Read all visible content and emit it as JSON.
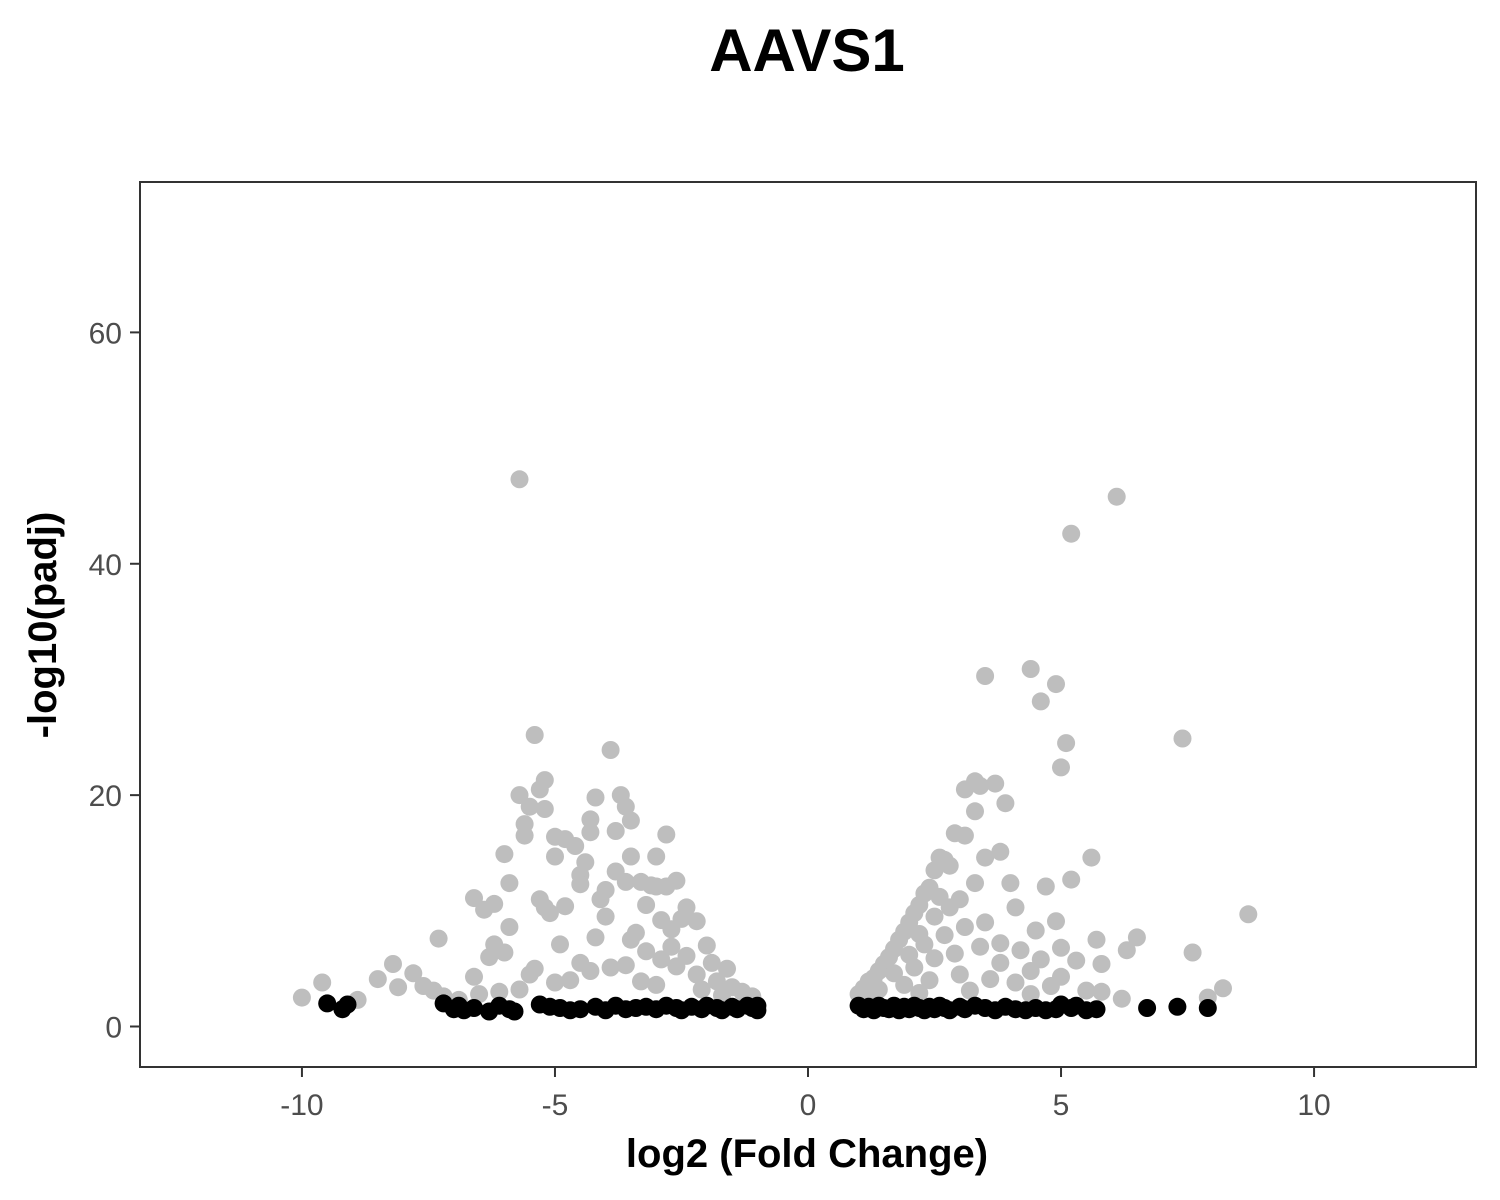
{
  "chart_data": {
    "type": "scatter",
    "title": "AAVS1",
    "xlabel": "log2 (Fold Change)",
    "ylabel": "-log10(padj)",
    "xlim": [
      -13.2,
      13.2
    ],
    "ylim": [
      -3.5,
      73
    ],
    "x_ticks": [
      {
        "value": -10,
        "label": "-10"
      },
      {
        "value": -5,
        "label": "-5"
      },
      {
        "value": 0,
        "label": "0"
      },
      {
        "value": 5,
        "label": "5"
      },
      {
        "value": 10,
        "label": "10"
      }
    ],
    "y_ticks": [
      {
        "value": 0,
        "label": "0"
      },
      {
        "value": 20,
        "label": "20"
      },
      {
        "value": 40,
        "label": "40"
      },
      {
        "value": 60,
        "label": "60"
      }
    ],
    "grid": false,
    "legend": "none",
    "colors": {
      "significant": "#bebebe",
      "not_significant": "#000000",
      "panel_border": "#333333",
      "tick_text": "#4d4d4d"
    },
    "series": [
      {
        "color": "#bebebe",
        "points": [
          [
            -10.0,
            2.5
          ],
          [
            -9.6,
            3.8
          ],
          [
            -8.9,
            2.3
          ],
          [
            -8.5,
            4.1
          ],
          [
            -8.2,
            5.4
          ],
          [
            -8.1,
            3.4
          ],
          [
            -7.8,
            4.6
          ],
          [
            -7.6,
            3.5
          ],
          [
            -7.3,
            7.6
          ],
          [
            -7.2,
            2.6
          ],
          [
            -6.9,
            2.3
          ],
          [
            -6.6,
            4.3
          ],
          [
            -6.6,
            11.1
          ],
          [
            -6.4,
            10.1
          ],
          [
            -6.3,
            6.0
          ],
          [
            -6.2,
            10.6
          ],
          [
            -6.0,
            14.9
          ],
          [
            -6.2,
            7.1
          ],
          [
            -6.0,
            6.4
          ],
          [
            -5.9,
            8.6
          ],
          [
            -5.9,
            12.4
          ],
          [
            -5.7,
            47.3
          ],
          [
            -5.7,
            20.0
          ],
          [
            -5.6,
            16.5
          ],
          [
            -5.6,
            17.5
          ],
          [
            -5.5,
            19.0
          ],
          [
            -5.4,
            25.2
          ],
          [
            -5.3,
            20.5
          ],
          [
            -5.2,
            21.3
          ],
          [
            -5.2,
            18.8
          ],
          [
            -5.3,
            11.0
          ],
          [
            -5.2,
            10.3
          ],
          [
            -5.5,
            4.5
          ],
          [
            -5.4,
            5.0
          ],
          [
            -5.1,
            9.8
          ],
          [
            -5.0,
            16.4
          ],
          [
            -5.0,
            14.7
          ],
          [
            -4.9,
            7.1
          ],
          [
            -4.8,
            10.4
          ],
          [
            -4.8,
            16.2
          ],
          [
            -4.6,
            15.6
          ],
          [
            -4.5,
            13.1
          ],
          [
            -4.5,
            12.3
          ],
          [
            -4.5,
            5.5
          ],
          [
            -4.4,
            14.2
          ],
          [
            -4.3,
            17.9
          ],
          [
            -4.3,
            16.8
          ],
          [
            -4.2,
            7.7
          ],
          [
            -4.2,
            19.8
          ],
          [
            -4.1,
            11.0
          ],
          [
            -4.0,
            9.5
          ],
          [
            -4.0,
            11.8
          ],
          [
            -3.9,
            23.9
          ],
          [
            -3.8,
            16.9
          ],
          [
            -3.8,
            13.4
          ],
          [
            -3.7,
            20.0
          ],
          [
            -3.6,
            19.0
          ],
          [
            -3.6,
            12.5
          ],
          [
            -3.5,
            17.8
          ],
          [
            -3.5,
            14.7
          ],
          [
            -3.4,
            8.1
          ],
          [
            -3.3,
            12.5
          ],
          [
            -3.2,
            10.5
          ],
          [
            -3.1,
            12.2
          ],
          [
            -3.0,
            12.1
          ],
          [
            -3.0,
            14.7
          ],
          [
            -2.9,
            9.2
          ],
          [
            -2.8,
            16.6
          ],
          [
            -2.8,
            12.1
          ],
          [
            -2.7,
            8.4
          ],
          [
            -2.6,
            12.6
          ],
          [
            -2.5,
            9.3
          ],
          [
            -2.4,
            10.3
          ],
          [
            -2.2,
            9.1
          ],
          [
            -2.0,
            7.0
          ],
          [
            -1.9,
            5.5
          ],
          [
            -1.6,
            5.0
          ],
          [
            -3.5,
            7.5
          ],
          [
            -3.2,
            6.5
          ],
          [
            -2.9,
            5.8
          ],
          [
            -2.6,
            5.2
          ],
          [
            -2.4,
            6.1
          ],
          [
            -2.2,
            4.5
          ],
          [
            -1.8,
            3.9
          ],
          [
            -1.5,
            3.4
          ],
          [
            -1.3,
            3.0
          ],
          [
            -3.9,
            5.1
          ],
          [
            -4.7,
            4.0
          ],
          [
            -5.7,
            3.2
          ],
          [
            -6.5,
            2.8
          ],
          [
            -7.4,
            3.1
          ],
          [
            -3.0,
            3.6
          ],
          [
            -2.1,
            3.2
          ],
          [
            -1.7,
            2.7
          ],
          [
            -1.1,
            2.6
          ],
          [
            -4.3,
            4.8
          ],
          [
            -3.6,
            5.3
          ],
          [
            -2.7,
            6.9
          ],
          [
            -5.0,
            3.8
          ],
          [
            -6.1,
            3.0
          ],
          [
            -3.3,
            3.9
          ],
          [
            1.0,
            2.8
          ],
          [
            1.1,
            3.3
          ],
          [
            1.2,
            3.9
          ],
          [
            1.3,
            4.2
          ],
          [
            1.4,
            4.8
          ],
          [
            1.5,
            5.4
          ],
          [
            1.6,
            6.0
          ],
          [
            1.7,
            6.7
          ],
          [
            1.8,
            7.5
          ],
          [
            1.9,
            8.2
          ],
          [
            2.0,
            9.0
          ],
          [
            2.1,
            9.8
          ],
          [
            2.2,
            10.5
          ],
          [
            2.3,
            11.5
          ],
          [
            2.4,
            12.0
          ],
          [
            2.5,
            13.5
          ],
          [
            2.6,
            14.6
          ],
          [
            2.7,
            14.4
          ],
          [
            2.6,
            11.2
          ],
          [
            2.8,
            13.9
          ],
          [
            2.9,
            16.7
          ],
          [
            3.1,
            16.5
          ],
          [
            3.1,
            20.5
          ],
          [
            3.3,
            18.6
          ],
          [
            3.3,
            21.2
          ],
          [
            3.4,
            20.8
          ],
          [
            3.5,
            30.3
          ],
          [
            3.5,
            14.6
          ],
          [
            3.7,
            21.0
          ],
          [
            3.8,
            15.1
          ],
          [
            3.9,
            19.3
          ],
          [
            4.0,
            12.4
          ],
          [
            4.1,
            10.3
          ],
          [
            4.4,
            30.9
          ],
          [
            4.5,
            8.3
          ],
          [
            4.6,
            28.1
          ],
          [
            4.7,
            12.1
          ],
          [
            4.9,
            29.6
          ],
          [
            4.9,
            9.1
          ],
          [
            5.0,
            22.4
          ],
          [
            5.0,
            6.8
          ],
          [
            5.1,
            24.5
          ],
          [
            5.2,
            12.7
          ],
          [
            5.2,
            42.6
          ],
          [
            5.3,
            5.7
          ],
          [
            5.6,
            14.6
          ],
          [
            5.7,
            7.5
          ],
          [
            5.8,
            5.4
          ],
          [
            6.1,
            45.8
          ],
          [
            6.3,
            6.6
          ],
          [
            6.5,
            7.7
          ],
          [
            7.4,
            24.9
          ],
          [
            7.6,
            6.4
          ],
          [
            8.2,
            3.3
          ],
          [
            8.7,
            9.7
          ],
          [
            5.8,
            3.0
          ],
          [
            6.2,
            2.4
          ],
          [
            7.9,
            2.5
          ],
          [
            2.2,
            8.0
          ],
          [
            2.5,
            9.5
          ],
          [
            2.8,
            10.3
          ],
          [
            3.0,
            11.0
          ],
          [
            3.3,
            12.4
          ],
          [
            2.0,
            6.2
          ],
          [
            2.3,
            7.1
          ],
          [
            2.7,
            7.9
          ],
          [
            3.1,
            8.6
          ],
          [
            3.5,
            9.0
          ],
          [
            3.8,
            7.2
          ],
          [
            4.2,
            6.6
          ],
          [
            4.6,
            5.8
          ],
          [
            1.7,
            4.6
          ],
          [
            2.1,
            5.1
          ],
          [
            2.5,
            5.9
          ],
          [
            2.9,
            6.3
          ],
          [
            3.4,
            6.9
          ],
          [
            3.8,
            5.5
          ],
          [
            4.4,
            4.8
          ],
          [
            5.0,
            4.3
          ],
          [
            1.4,
            3.2
          ],
          [
            1.9,
            3.6
          ],
          [
            2.4,
            4.0
          ],
          [
            3.0,
            4.5
          ],
          [
            3.6,
            4.1
          ],
          [
            4.1,
            3.8
          ],
          [
            4.8,
            3.5
          ],
          [
            5.5,
            3.1
          ],
          [
            1.2,
            2.6
          ],
          [
            2.2,
            2.9
          ],
          [
            3.2,
            3.1
          ],
          [
            4.4,
            2.8
          ]
        ]
      },
      {
        "color": "#000000",
        "points": [
          [
            -9.5,
            2.0
          ],
          [
            -9.2,
            1.5
          ],
          [
            -9.1,
            1.9
          ],
          [
            -7.2,
            2.0
          ],
          [
            -7.0,
            1.5
          ],
          [
            -6.9,
            1.8
          ],
          [
            -6.8,
            1.4
          ],
          [
            -6.6,
            1.6
          ],
          [
            -6.3,
            1.3
          ],
          [
            -6.1,
            1.8
          ],
          [
            -5.9,
            1.5
          ],
          [
            -5.8,
            1.3
          ],
          [
            -5.3,
            1.9
          ],
          [
            -5.1,
            1.7
          ],
          [
            -4.9,
            1.6
          ],
          [
            -4.7,
            1.4
          ],
          [
            -4.5,
            1.5
          ],
          [
            -4.2,
            1.7
          ],
          [
            -4.0,
            1.4
          ],
          [
            -3.8,
            1.8
          ],
          [
            -3.6,
            1.5
          ],
          [
            -3.4,
            1.6
          ],
          [
            -3.2,
            1.7
          ],
          [
            -3.0,
            1.5
          ],
          [
            -2.8,
            1.8
          ],
          [
            -2.6,
            1.6
          ],
          [
            -2.5,
            1.4
          ],
          [
            -2.3,
            1.7
          ],
          [
            -2.1,
            1.5
          ],
          [
            -2.0,
            1.8
          ],
          [
            -1.8,
            1.6
          ],
          [
            -1.7,
            1.4
          ],
          [
            -1.5,
            1.7
          ],
          [
            -1.4,
            1.5
          ],
          [
            -1.2,
            1.8
          ],
          [
            -1.1,
            1.6
          ],
          [
            -1.0,
            1.4
          ],
          [
            -1.0,
            1.8
          ],
          [
            1.0,
            1.8
          ],
          [
            1.1,
            1.5
          ],
          [
            1.2,
            1.7
          ],
          [
            1.3,
            1.4
          ],
          [
            1.4,
            1.8
          ],
          [
            1.5,
            1.6
          ],
          [
            1.6,
            1.5
          ],
          [
            1.7,
            1.8
          ],
          [
            1.8,
            1.4
          ],
          [
            1.9,
            1.7
          ],
          [
            2.0,
            1.5
          ],
          [
            2.1,
            1.8
          ],
          [
            2.2,
            1.6
          ],
          [
            2.3,
            1.4
          ],
          [
            2.4,
            1.7
          ],
          [
            2.5,
            1.5
          ],
          [
            2.6,
            1.8
          ],
          [
            2.7,
            1.6
          ],
          [
            2.8,
            1.4
          ],
          [
            3.0,
            1.7
          ],
          [
            3.1,
            1.5
          ],
          [
            3.3,
            1.8
          ],
          [
            3.5,
            1.6
          ],
          [
            3.7,
            1.4
          ],
          [
            3.9,
            1.7
          ],
          [
            4.1,
            1.5
          ],
          [
            4.3,
            1.4
          ],
          [
            4.5,
            1.6
          ],
          [
            4.7,
            1.4
          ],
          [
            4.9,
            1.5
          ],
          [
            5.0,
            1.9
          ],
          [
            5.2,
            1.6
          ],
          [
            5.3,
            1.8
          ],
          [
            5.5,
            1.4
          ],
          [
            5.7,
            1.5
          ],
          [
            6.7,
            1.6
          ],
          [
            7.3,
            1.7
          ],
          [
            7.9,
            1.6
          ]
        ]
      }
    ]
  }
}
